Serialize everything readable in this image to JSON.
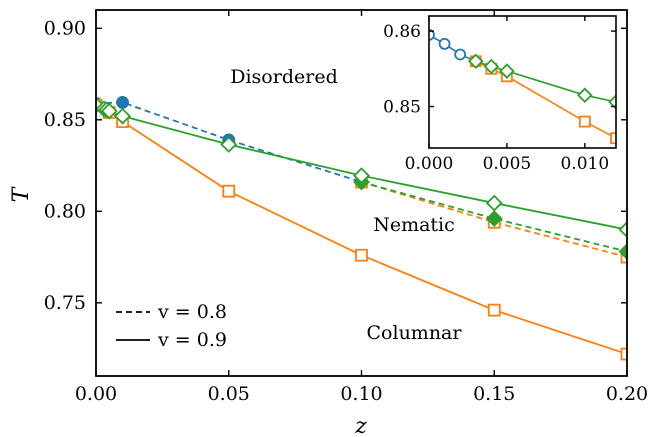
{
  "chart_data": [
    {
      "type": "line",
      "xlabel": "z",
      "ylabel": "T",
      "xlim": [
        0.0,
        0.2
      ],
      "ylim": [
        0.71,
        0.91
      ],
      "xticks": [
        "0.00",
        "0.05",
        "0.10",
        "0.15",
        "0.20"
      ],
      "yticks": [
        "0.75",
        "0.80",
        "0.85",
        "0.90"
      ],
      "annotations": [
        "Disordered",
        "Nematic",
        "Columnar"
      ],
      "legend": {
        "position": "lower-left",
        "entries": [
          {
            "style": "dashed",
            "label": "v = 0.8"
          },
          {
            "style": "solid",
            "label": "v = 0.9"
          }
        ]
      },
      "series": [
        {
          "color": "#1f77b4",
          "linestyle": "dashed",
          "marker": "filled-circle",
          "x": [
            0.0,
            0.01,
            0.05,
            0.1
          ],
          "y": [
            0.859,
            0.8595,
            0.839,
            0.816
          ]
        },
        {
          "color": "#ff7f0e",
          "linestyle": "dashed",
          "marker": "open-square",
          "x": [
            0.1,
            0.15,
            0.2
          ],
          "y": [
            0.816,
            0.794,
            0.775
          ]
        },
        {
          "color": "#2ca02c",
          "linestyle": "dashed",
          "marker": "filled-diamond",
          "x": [
            0.1,
            0.15,
            0.2
          ],
          "y": [
            0.816,
            0.796,
            0.778
          ]
        },
        {
          "color": "#ff7f0e",
          "linestyle": "solid",
          "marker": "open-square",
          "x": [
            0.0,
            0.005,
            0.01,
            0.05,
            0.1,
            0.15,
            0.2
          ],
          "y": [
            0.858,
            0.854,
            0.849,
            0.811,
            0.776,
            0.746,
            0.722
          ]
        },
        {
          "color": "#2ca02c",
          "linestyle": "solid",
          "marker": "open-diamond",
          "x": [
            0.0,
            0.003,
            0.004,
            0.005,
            0.01,
            0.05,
            0.1,
            0.15,
            0.2
          ],
          "y": [
            0.858,
            0.856,
            0.8555,
            0.8548,
            0.852,
            0.8365,
            0.8195,
            0.8045,
            0.79
          ]
        }
      ]
    },
    {
      "type": "line",
      "inset": true,
      "xlim": [
        0.0,
        0.012
      ],
      "ylim": [
        0.8445,
        0.862
      ],
      "xticks": [
        "0.000",
        "0.005",
        "0.010"
      ],
      "yticks": [
        "0.85",
        "0.86"
      ],
      "series": [
        {
          "color": "#1f77b4",
          "linestyle": "solid",
          "marker": "open-circle",
          "x": [
            0.0,
            0.001,
            0.002,
            0.003
          ],
          "y": [
            0.8595,
            0.8583,
            0.8569,
            0.856
          ]
        },
        {
          "color": "#ff7f0e",
          "linestyle": "solid",
          "marker": "open-square",
          "x": [
            0.003,
            0.004,
            0.005,
            0.01,
            0.012
          ],
          "y": [
            0.856,
            0.855,
            0.854,
            0.848,
            0.8458
          ]
        },
        {
          "color": "#2ca02c",
          "linestyle": "solid",
          "marker": "open-diamond",
          "x": [
            0.003,
            0.004,
            0.005,
            0.01,
            0.012
          ],
          "y": [
            0.856,
            0.8553,
            0.8547,
            0.8515,
            0.8506
          ]
        }
      ]
    }
  ]
}
